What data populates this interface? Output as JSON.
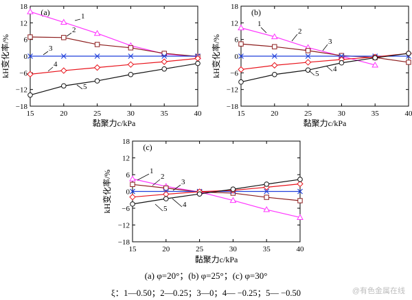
{
  "chart_data": [
    {
      "type": "line",
      "panel_label": "(a)",
      "xlabel": "黏聚力c/kPa",
      "ylabel": "kH变化率/%",
      "x": [
        15,
        20,
        25,
        30,
        35,
        40
      ],
      "xlim": [
        15,
        40
      ],
      "ylim": [
        -18,
        18
      ],
      "xticks": [
        15,
        20,
        25,
        30,
        35,
        40
      ],
      "yticks": [
        -18,
        -12,
        -6,
        0,
        6,
        12,
        18
      ],
      "grid": false,
      "series": [
        {
          "name": "1",
          "values": [
            16.0,
            12.2,
            8.2,
            3.8,
            0.8,
            -0.2
          ]
        },
        {
          "name": "2",
          "values": [
            6.9,
            6.7,
            4.2,
            3.0,
            1.0,
            -0.1
          ]
        },
        {
          "name": "3",
          "values": [
            0.0,
            0.0,
            0.0,
            0.0,
            0.0,
            0.0
          ]
        },
        {
          "name": "4",
          "values": [
            -6.5,
            -5.2,
            -4.1,
            -3.0,
            -2.0,
            -0.8
          ]
        },
        {
          "name": "5",
          "values": [
            -14.0,
            -10.7,
            -8.9,
            -6.6,
            -4.6,
            -2.6
          ]
        }
      ]
    },
    {
      "type": "line",
      "panel_label": "(b)",
      "xlabel": "黏聚力c/kPa",
      "ylabel": "kH变化率/%",
      "x": [
        15,
        20,
        25,
        30,
        35,
        40
      ],
      "xlim": [
        15,
        40
      ],
      "ylim": [
        -18,
        18
      ],
      "xticks": [
        15,
        20,
        25,
        30,
        35,
        40
      ],
      "yticks": [
        -18,
        -12,
        -6,
        0,
        6,
        12,
        18
      ],
      "grid": false,
      "series": [
        {
          "name": "1",
          "values": [
            10.2,
            7.0,
            3.1,
            0.0,
            -3.2,
            null
          ]
        },
        {
          "name": "2",
          "values": [
            4.4,
            3.4,
            2.0,
            0.2,
            -0.5,
            -2.2
          ]
        },
        {
          "name": "3",
          "values": [
            0.0,
            0.0,
            0.0,
            0.0,
            0.0,
            0.0
          ]
        },
        {
          "name": "4",
          "values": [
            -4.8,
            -3.3,
            -2.2,
            -1.2,
            -0.3,
            1.0
          ]
        },
        {
          "name": "5",
          "values": [
            -9.3,
            -6.6,
            -5.0,
            -2.4,
            -0.6,
            1.0
          ]
        }
      ]
    },
    {
      "type": "line",
      "panel_label": "(c)",
      "xlabel": "黏聚力c/kPa",
      "ylabel": "kH变化率/%",
      "x": [
        15,
        20,
        25,
        30,
        35,
        40
      ],
      "xlim": [
        15,
        40
      ],
      "ylim": [
        -18,
        18
      ],
      "xticks": [
        15,
        20,
        25,
        30,
        35,
        40
      ],
      "yticks": [
        -18,
        -12,
        -6,
        0,
        6,
        12,
        18
      ],
      "grid": false,
      "series": [
        {
          "name": "1",
          "values": [
            4.5,
            1.8,
            -0.2,
            -3.2,
            -6.5,
            -9.3
          ]
        },
        {
          "name": "2",
          "values": [
            2.5,
            1.2,
            -0.2,
            -0.6,
            -2.1,
            -3.3
          ]
        },
        {
          "name": "3",
          "values": [
            0.0,
            0.0,
            0.0,
            0.0,
            0.0,
            0.0
          ]
        },
        {
          "name": "4",
          "values": [
            -2.0,
            -1.0,
            -0.1,
            0.4,
            1.5,
            2.7
          ]
        },
        {
          "name": "5",
          "values": [
            -4.5,
            -2.6,
            -0.9,
            0.8,
            2.6,
            4.3
          ]
        }
      ]
    }
  ],
  "series_style": [
    {
      "color": "#ff33ff",
      "marker": "triangle"
    },
    {
      "color": "#8b1a1a",
      "marker": "square"
    },
    {
      "color": "#1f3fdb",
      "marker": "x"
    },
    {
      "color": "#e8121a",
      "marker": "diamond"
    },
    {
      "color": "#111111",
      "marker": "circle"
    }
  ],
  "caption": "(a) φ=20°；(b) φ=25°；(c) φ=30°",
  "legend_text": "ξ：1—0.50；2—0.25；3—0；4— −0.25；5— −0.50",
  "watermark": "@有色金属在线"
}
